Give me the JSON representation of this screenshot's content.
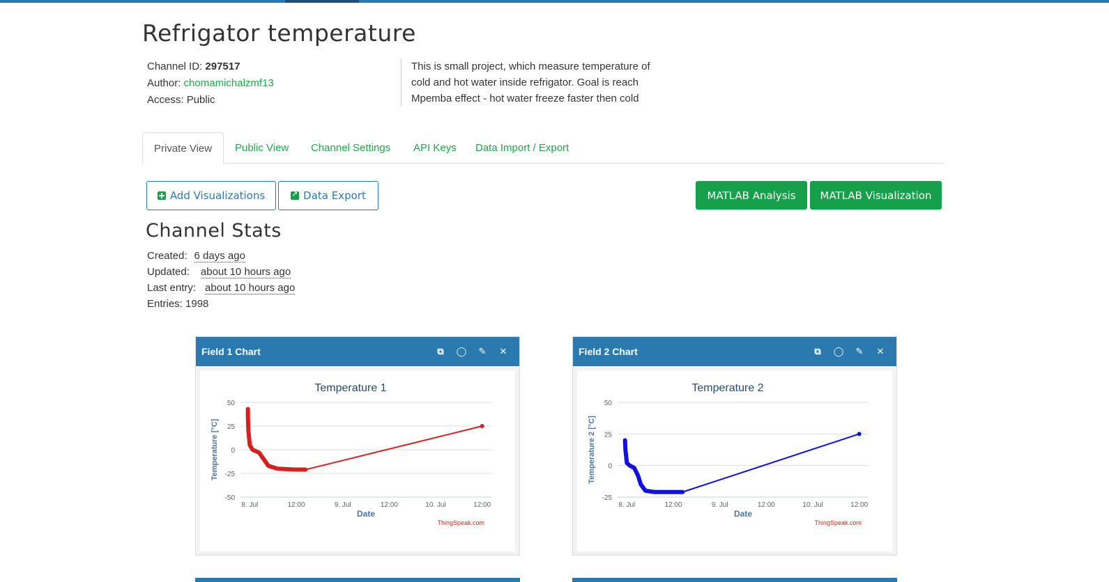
{
  "page": {
    "title": "Refrigator temperature"
  },
  "channel": {
    "id_label": "Channel ID:",
    "id_value": "297517",
    "author_label": "Author:",
    "author_value": "chomamichalzmf13",
    "access_label": "Access:",
    "access_value": "Public",
    "description_lines": [
      "This is small project, which measure temperature of",
      "cold and hot water inside refrigator. Goal is reach",
      "Mpemba effect - hot water freeze faster then cold"
    ]
  },
  "tabs": [
    {
      "label": "Private View",
      "active": true
    },
    {
      "label": "Public View"
    },
    {
      "label": "Channel Settings"
    },
    {
      "label": "API Keys"
    },
    {
      "label": "Data Import / Export"
    }
  ],
  "toolbar": {
    "add_visualizations": "Add Visualizations",
    "data_export": "Data Export",
    "matlab_analysis": "MATLAB Analysis",
    "matlab_visualization": "MATLAB Visualization"
  },
  "stats": {
    "title": "Channel Stats",
    "created_label": "Created:",
    "created_value": "6 days ago",
    "updated_label": "Updated:",
    "updated_value": "about 10 hours ago",
    "last_entry_label": "Last entry:",
    "last_entry_value": "about 10 hours ago",
    "entries_label": "Entries:",
    "entries_value": "1998"
  },
  "colors": {
    "accent_blue": "#2a7ab0",
    "green": "#17a04a",
    "series1": "#d62020",
    "series2": "#1010e0"
  },
  "icons": [
    "external-link-icon",
    "comment-icon",
    "pencil-icon",
    "close-icon"
  ],
  "chart_data": [
    {
      "type": "line",
      "card_title": "Field 1 Chart",
      "title": "Temperature 1",
      "xlabel": "Date",
      "ylabel": "Temperature [°C]",
      "credit": "ThingSpeak.com",
      "x_ticks": [
        "8. Jul",
        "12:00",
        "9. Jul",
        "12:00",
        "10. Jul",
        "12:00"
      ],
      "y_ticks": [
        50,
        25,
        0,
        -25,
        -50
      ],
      "ylim": [
        -50,
        50
      ],
      "xlim": [
        -0.1,
        2.6
      ],
      "x_unit": "days since 8. Jul 00:00",
      "series": [
        {
          "color": "#d62020",
          "points": [
            [
              -0.02,
              43
            ],
            [
              -0.02,
              35
            ],
            [
              -0.015,
              20
            ],
            [
              0.0,
              5
            ],
            [
              0.03,
              0
            ],
            [
              0.1,
              -3
            ],
            [
              0.15,
              -10
            ],
            [
              0.2,
              -17
            ],
            [
              0.3,
              -20
            ],
            [
              0.5,
              -21
            ],
            [
              0.6,
              -21
            ],
            [
              2.5,
              25
            ]
          ]
        }
      ]
    },
    {
      "type": "line",
      "card_title": "Field 2 Chart",
      "title": "Temperature 2",
      "xlabel": "Date",
      "ylabel": "Temperature 2 [°C]",
      "credit": "ThingSpeak.com",
      "x_ticks": [
        "8. Jul",
        "12:00",
        "9. Jul",
        "12:00",
        "10. Jul",
        "12:00"
      ],
      "y_ticks": [
        50,
        25,
        0,
        -25
      ],
      "ylim": [
        -25,
        50
      ],
      "xlim": [
        -0.1,
        2.6
      ],
      "series": [
        {
          "color": "#1010e0",
          "points": [
            [
              -0.02,
              20
            ],
            [
              -0.015,
              12
            ],
            [
              0.0,
              2
            ],
            [
              0.03,
              0
            ],
            [
              0.08,
              -2
            ],
            [
              0.12,
              -8
            ],
            [
              0.15,
              -15
            ],
            [
              0.2,
              -20
            ],
            [
              0.3,
              -21
            ],
            [
              0.5,
              -21
            ],
            [
              0.6,
              -21
            ],
            [
              2.5,
              25
            ]
          ]
        }
      ]
    }
  ]
}
